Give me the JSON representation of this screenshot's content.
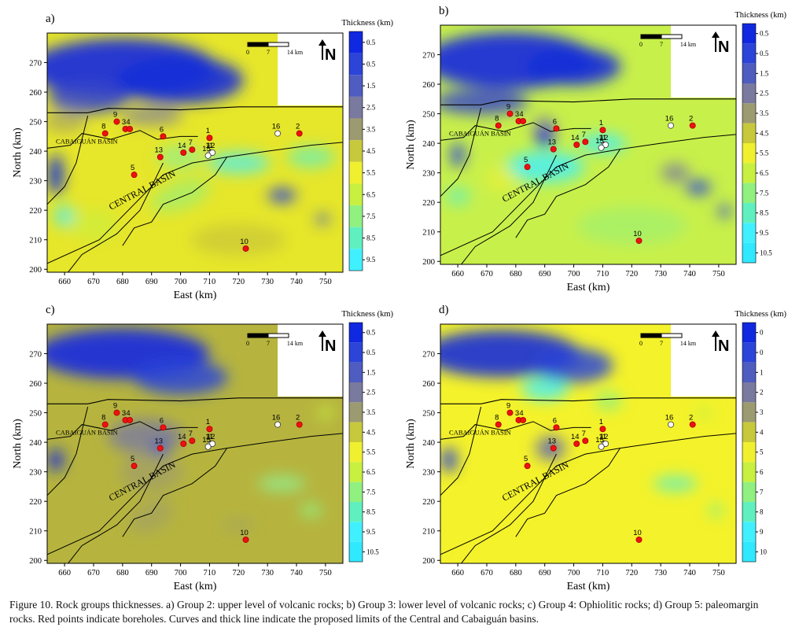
{
  "panels": [
    {
      "id": "a",
      "label": "a)",
      "legend_title": "Thickness (km)",
      "legend_ticks": [
        "0.5",
        "0.5",
        "1.5",
        "2.5",
        "3.5",
        "4.5",
        "5.5",
        "6.5",
        "7.5",
        "8.5",
        "9.5"
      ],
      "legend_colors": [
        "#1028e0",
        "#2c44d8",
        "#4f5cc0",
        "#7a7aa0",
        "#9c9a70",
        "#c8c83c",
        "#f0f030",
        "#c8f040",
        "#90f080",
        "#60f0c0",
        "#40f0ff"
      ],
      "field_base": "#e6e62a"
    },
    {
      "id": "b",
      "label": "b)",
      "legend_title": "Thickness (km)",
      "legend_ticks": [
        "0.5",
        "0.5",
        "1.5",
        "2.5",
        "3.5",
        "4.5",
        "5.5",
        "6.5",
        "7.5",
        "8.5",
        "9.5",
        "10.5"
      ],
      "legend_colors": [
        "#1028e0",
        "#2c44d8",
        "#4f5cc0",
        "#7a7aa0",
        "#9c9a70",
        "#c8c83c",
        "#f0f030",
        "#c8f040",
        "#90f080",
        "#60f0c0",
        "#40f0ff",
        "#30e8ff"
      ],
      "field_base": "#c8f04a"
    },
    {
      "id": "c",
      "label": "c)",
      "legend_title": "Thickness (km)",
      "legend_ticks": [
        "0.5",
        "0.5",
        "1.5",
        "2.5",
        "3.5",
        "4.5",
        "5.5",
        "6.5",
        "7.5",
        "8.5",
        "9.5",
        "10.5"
      ],
      "legend_colors": [
        "#1028e0",
        "#2c44d8",
        "#4f5cc0",
        "#7a7aa0",
        "#9c9a70",
        "#c8c83c",
        "#f0f030",
        "#c8f040",
        "#90f080",
        "#60f0c0",
        "#40f0ff",
        "#30e8ff"
      ],
      "field_base": "#b6b43e"
    },
    {
      "id": "d",
      "label": "d)",
      "legend_title": "Thickness (km)",
      "legend_ticks": [
        "0",
        "0",
        "1",
        "2",
        "3",
        "4",
        "5",
        "6",
        "7",
        "8",
        "9",
        "10"
      ],
      "legend_colors": [
        "#1028e0",
        "#2c44d8",
        "#4f5cc0",
        "#7a7aa0",
        "#9c9a70",
        "#c8c83c",
        "#f0f030",
        "#c8f040",
        "#90f080",
        "#60f0c0",
        "#40f0ff",
        "#30e8ff"
      ],
      "field_base": "#f4f22a"
    }
  ],
  "axes": {
    "xlabel": "East (km)",
    "ylabel": "North (km)",
    "x_ticks": [
      660,
      670,
      680,
      690,
      700,
      710,
      720,
      730,
      740,
      750
    ],
    "y_ticks": [
      200,
      210,
      220,
      230,
      240,
      250,
      260,
      270
    ],
    "x_range": [
      654,
      756
    ],
    "y_range": [
      199,
      280
    ]
  },
  "scale_bar": {
    "labels": [
      "0",
      "7",
      "14 km"
    ]
  },
  "north_label": "N",
  "basin_labels": {
    "cabaiguan": "CABAIGUÁN BASIN",
    "central": "CENTRAL BASIN"
  },
  "boreholes": [
    {
      "id": "1",
      "x": 710,
      "y": 244.5,
      "white": false
    },
    {
      "id": "2",
      "x": 741,
      "y": 246,
      "white": false
    },
    {
      "id": "3",
      "x": 681,
      "y": 247.5,
      "white": false
    },
    {
      "id": "4",
      "x": 682.5,
      "y": 247.5,
      "white": false
    },
    {
      "id": "5",
      "x": 684,
      "y": 232,
      "white": false
    },
    {
      "id": "6",
      "x": 694,
      "y": 245,
      "white": false
    },
    {
      "id": "7",
      "x": 704,
      "y": 240.5,
      "white": false
    },
    {
      "id": "8",
      "x": 674,
      "y": 246,
      "white": false
    },
    {
      "id": "9",
      "x": 678,
      "y": 250,
      "white": false
    },
    {
      "id": "10",
      "x": 722.5,
      "y": 207,
      "white": false
    },
    {
      "id": "11",
      "x": 710.5,
      "y": 239.5,
      "white": true
    },
    {
      "id": "12",
      "x": 711,
      "y": 239.5,
      "white": true
    },
    {
      "id": "13",
      "x": 693,
      "y": 238,
      "white": false
    },
    {
      "id": "14",
      "x": 701,
      "y": 239.5,
      "white": false
    },
    {
      "id": "15",
      "x": 709.5,
      "y": 238.5,
      "white": true
    },
    {
      "id": "16",
      "x": 733.5,
      "y": 246,
      "white": true
    }
  ],
  "caption": "Figure 10. Rock groups thicknesses. a) Group 2: upper level of volcanic rocks; b) Group 3: lower level of volcanic rocks; c) Group 4: Ophiolitic rocks; d) Group 5: paleomargin rocks. Red points indicate boreholes. Curves and thick line indicate the proposed limits of the Central and Cabaiguán basins."
}
